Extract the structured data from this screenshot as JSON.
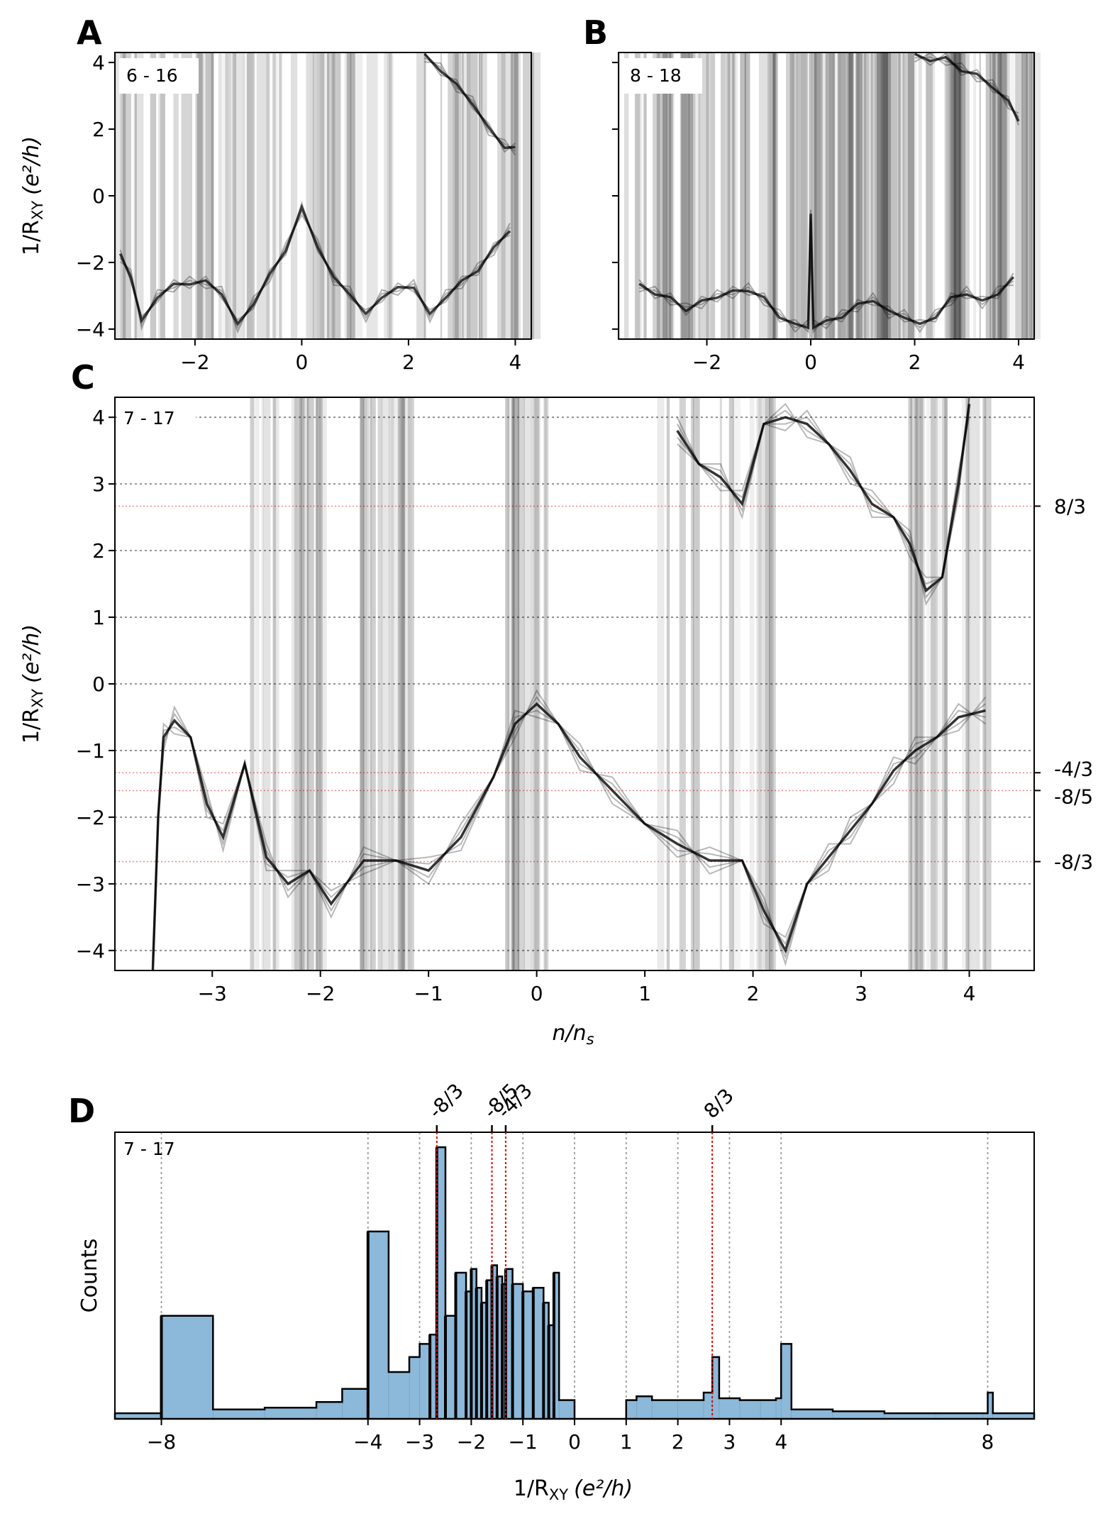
{
  "figure": {
    "panel_labels": [
      "A",
      "B",
      "C",
      "D"
    ],
    "units_label": "(e²/h)",
    "ylabel_prefix": "1/R",
    "ylabel_sub": "XY",
    "xlabel_c": "n/n",
    "xlabel_c_sub": "s",
    "counts_label": "Counts"
  },
  "chart_data": [
    {
      "id": "A",
      "type": "line",
      "inset_label": "6 - 16",
      "xlim": [
        -3.5,
        4.3
      ],
      "ylim": [
        -4.3,
        4.3
      ],
      "xticks": [
        -2,
        0,
        2,
        4
      ],
      "yticks": [
        4,
        2,
        0,
        -2,
        -4
      ],
      "xlabel": "",
      "ylabel": "1/R_XY (e²/h)",
      "series": [
        {
          "name": "lower-trace",
          "x": [
            -3.4,
            -3.2,
            -3.0,
            -2.7,
            -2.4,
            -2.1,
            -1.8,
            -1.5,
            -1.2,
            -0.9,
            -0.6,
            -0.3,
            0.0,
            0.3,
            0.6,
            0.9,
            1.2,
            1.5,
            1.8,
            2.1,
            2.4,
            2.7,
            3.0,
            3.3,
            3.6,
            3.9
          ],
          "y": [
            -1.8,
            -2.4,
            -3.8,
            -3.0,
            -2.7,
            -2.6,
            -2.6,
            -2.9,
            -3.9,
            -3.2,
            -2.4,
            -1.6,
            -0.4,
            -1.5,
            -2.5,
            -2.9,
            -3.6,
            -3.0,
            -2.8,
            -2.7,
            -3.6,
            -3.0,
            -2.6,
            -2.2,
            -1.6,
            -1.0
          ]
        },
        {
          "name": "upper-trace",
          "x": [
            2.3,
            2.6,
            2.9,
            3.2,
            3.5,
            3.8,
            4.0
          ],
          "y": [
            4.2,
            3.8,
            3.3,
            2.8,
            2.0,
            1.5,
            1.4
          ]
        }
      ]
    },
    {
      "id": "B",
      "type": "line",
      "inset_label": "8 - 18",
      "xlim": [
        -3.7,
        4.3
      ],
      "ylim": [
        -4.3,
        4.3
      ],
      "xticks": [
        -2,
        0,
        2,
        4
      ],
      "yticks": [
        4,
        2,
        0,
        -2,
        -4
      ],
      "xlabel": "",
      "ylabel": "",
      "series": [
        {
          "name": "lower-trace",
          "x": [
            -3.3,
            -3.0,
            -2.7,
            -2.4,
            -2.1,
            -1.8,
            -1.5,
            -1.2,
            -0.9,
            -0.6,
            -0.3,
            -0.05,
            0.0,
            0.05,
            0.3,
            0.6,
            0.9,
            1.2,
            1.5,
            1.8,
            2.1,
            2.4,
            2.7,
            3.0,
            3.3,
            3.6,
            3.9
          ],
          "y": [
            -2.7,
            -2.9,
            -3.1,
            -3.4,
            -3.2,
            -3.0,
            -2.9,
            -2.8,
            -3.1,
            -3.6,
            -3.9,
            -3.9,
            -0.6,
            -3.9,
            -3.8,
            -3.6,
            -3.3,
            -3.1,
            -3.5,
            -3.6,
            -3.9,
            -3.6,
            -3.1,
            -2.9,
            -3.2,
            -2.9,
            -2.5
          ]
        },
        {
          "name": "upper-trace",
          "x": [
            2.0,
            2.3,
            2.6,
            2.9,
            3.2,
            3.5,
            3.8,
            4.0
          ],
          "y": [
            4.2,
            4.1,
            4.1,
            3.8,
            3.6,
            3.3,
            2.8,
            2.3
          ]
        }
      ]
    },
    {
      "id": "C",
      "type": "line",
      "inset_label": "7 - 17",
      "xlim": [
        -3.9,
        4.6
      ],
      "ylim": [
        -4.3,
        4.3
      ],
      "xticks": [
        -3,
        -2,
        -1,
        0,
        1,
        2,
        3,
        4
      ],
      "yticks": [
        4,
        3,
        2,
        1,
        0,
        -1,
        -2,
        -3,
        -4
      ],
      "xlabel": "n/n_s",
      "ylabel": "1/R_XY (e²/h)",
      "reference_lines": [
        {
          "value": 2.6667,
          "label": "8/3"
        },
        {
          "value": -1.3333,
          "label": "-4/3"
        },
        {
          "value": -1.6,
          "label": "-8/5"
        },
        {
          "value": -2.6667,
          "label": "-8/3"
        }
      ],
      "series": [
        {
          "name": "lower-trace",
          "x": [
            -3.55,
            -3.5,
            -3.45,
            -3.35,
            -3.2,
            -3.05,
            -2.9,
            -2.7,
            -2.5,
            -2.3,
            -2.1,
            -1.9,
            -1.6,
            -1.3,
            -1.0,
            -0.7,
            -0.4,
            -0.2,
            0.0,
            0.2,
            0.4,
            0.7,
            1.0,
            1.3,
            1.6,
            1.9,
            2.1,
            2.3,
            2.5,
            2.7,
            2.9,
            3.1,
            3.3,
            3.5,
            3.7,
            3.9,
            4.15
          ],
          "y": [
            -4.3,
            -2.0,
            -0.8,
            -0.55,
            -0.8,
            -1.8,
            -2.3,
            -1.2,
            -2.6,
            -3.0,
            -2.8,
            -3.3,
            -2.65,
            -2.65,
            -2.8,
            -2.3,
            -1.4,
            -0.6,
            -0.3,
            -0.6,
            -1.1,
            -1.6,
            -2.1,
            -2.4,
            -2.65,
            -2.65,
            -3.4,
            -4.0,
            -3.0,
            -2.6,
            -2.2,
            -1.8,
            -1.3,
            -1.0,
            -0.8,
            -0.5,
            -0.4
          ]
        },
        {
          "name": "upper-trace",
          "x": [
            1.3,
            1.5,
            1.7,
            1.9,
            2.1,
            2.3,
            2.5,
            2.7,
            2.9,
            3.1,
            3.3,
            3.45,
            3.6,
            3.75,
            3.9,
            4.0
          ],
          "y": [
            3.8,
            3.3,
            3.1,
            2.7,
            3.9,
            4.0,
            3.9,
            3.6,
            3.2,
            2.7,
            2.5,
            2.1,
            1.4,
            1.6,
            3.0,
            4.2
          ]
        }
      ]
    },
    {
      "id": "D",
      "type": "bar",
      "inset_label": "7 - 17",
      "xlim": [
        -8.9,
        8.9
      ],
      "xticks": [
        -8,
        -4,
        -3,
        -2,
        -1,
        0,
        1,
        2,
        3,
        4,
        8
      ],
      "xlabel": "1/R_XY (e²/h)",
      "ylabel": "Counts",
      "gridlines": [
        -8,
        -4,
        -3,
        -2,
        -1,
        0,
        1,
        2,
        3,
        4,
        8
      ],
      "highlighted_values": [
        {
          "value": -2.6667,
          "label": "-8/3"
        },
        {
          "value": -1.6,
          "label": "-8/5"
        },
        {
          "value": -1.3333,
          "label": "-4/3"
        },
        {
          "value": 2.6667,
          "label": "8/3"
        }
      ],
      "histogram": {
        "bins_x": [
          -8.9,
          -8.0,
          -7.0,
          -6.0,
          -5.0,
          -4.5,
          -4.0,
          -3.6,
          -3.2,
          -3.0,
          -2.8,
          -2.6667,
          -2.5,
          -2.3,
          -2.1,
          -2.0,
          -1.9,
          -1.8,
          -1.7,
          -1.6,
          -1.5,
          -1.4,
          -1.3333,
          -1.2,
          -1.0,
          -0.8,
          -0.6,
          -0.5,
          -0.4,
          -0.3,
          0.0,
          1.0,
          1.2,
          1.5,
          2.0,
          2.5,
          2.6667,
          2.8,
          3.2,
          3.6,
          3.9,
          4.0,
          4.2,
          5.0,
          6.0,
          7.0,
          7.9,
          8.0,
          8.1,
          8.9
        ],
        "counts": [
          3,
          55,
          5,
          6,
          9,
          16,
          100,
          25,
          33,
          40,
          45,
          145,
          55,
          78,
          68,
          80,
          70,
          62,
          74,
          82,
          76,
          72,
          80,
          72,
          68,
          70,
          62,
          50,
          78,
          10,
          0,
          10,
          12,
          10,
          10,
          14,
          33,
          11,
          10,
          10,
          11,
          40,
          5,
          4,
          3,
          3,
          3,
          14,
          3,
          2
        ],
        "ymax": 150
      }
    }
  ]
}
